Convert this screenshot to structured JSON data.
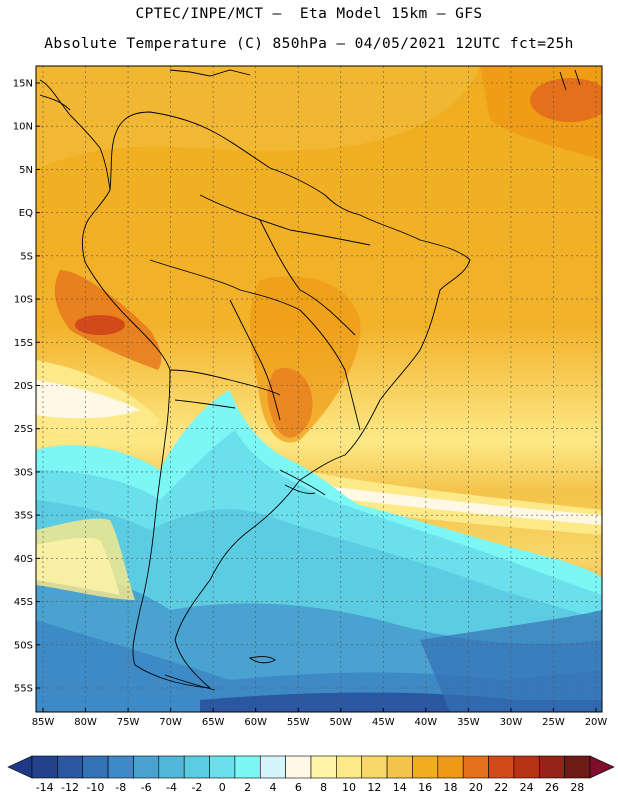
{
  "header": {
    "line1": "CPTEC/INPE/MCT –  Eta Model 15km – GFS",
    "line2": "Absolute Temperature (C) 850hPa – 04/05/2021 12UTC fct=25h"
  },
  "map": {
    "lat_labels": [
      "15N",
      "10N",
      "5N",
      "EQ",
      "5S",
      "10S",
      "15S",
      "20S",
      "25S",
      "30S",
      "35S",
      "40S",
      "45S",
      "50S",
      "55S"
    ],
    "lon_labels": [
      "85W",
      "80W",
      "75W",
      "70W",
      "65W",
      "60W",
      "55W",
      "50W",
      "45W",
      "40W",
      "35W",
      "30W",
      "25W",
      "20W"
    ],
    "lat_range": [
      15,
      -55
    ],
    "lon_range": [
      -85,
      -20
    ]
  },
  "colorbar": {
    "labels": [
      "-14",
      "-12",
      "-10",
      "-8",
      "-6",
      "-4",
      "-2",
      "0",
      "2",
      "4",
      "6",
      "8",
      "10",
      "12",
      "14",
      "16",
      "18",
      "20",
      "22",
      "24",
      "26",
      "28"
    ],
    "colors": [
      "#24428c",
      "#2b57a0",
      "#3471b5",
      "#3e8ac6",
      "#49a2d0",
      "#52b8da",
      "#5ccce3",
      "#69e0ec",
      "#7df6f6",
      "#d4f6fa",
      "#fff8e4",
      "#fff4a8",
      "#fde987",
      "#f8d769",
      "#f4c34a",
      "#f0ad1e",
      "#ef9a14",
      "#e4701b",
      "#d24a19",
      "#b83218",
      "#952418",
      "#6e1a15"
    ],
    "under_color": "#1e3a86",
    "over_color": "#7d0f2b"
  }
}
